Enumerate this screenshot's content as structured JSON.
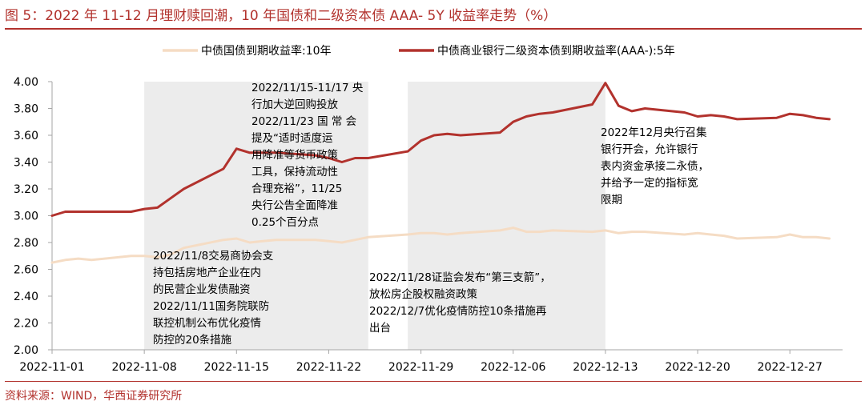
{
  "figure": {
    "title": "图 5：2022 年 11-12 月理财赎回潮，10 年国债和二级资本债 AAA- 5Y 收益率走势（%）",
    "source": "资料来源：WIND，华西证券研究所"
  },
  "chart_data": {
    "type": "line",
    "ylim": [
      2.0,
      4.0
    ],
    "yticks": [
      "2.00",
      "2.20",
      "2.40",
      "2.60",
      "2.80",
      "3.00",
      "3.20",
      "3.40",
      "3.60",
      "3.80",
      "4.00"
    ],
    "xticks": [
      "2022-11-01",
      "2022-11-08",
      "2022-11-15",
      "2022-11-22",
      "2022-11-29",
      "2022-12-06",
      "2022-12-13",
      "2022-12-20",
      "2022-12-27"
    ],
    "xlim": [
      "2022-11-01",
      "2022-12-31"
    ],
    "grid": false,
    "legend_position": "top",
    "shaded_ranges": [
      [
        "2022-11-08",
        "2022-11-25"
      ],
      [
        "2022-11-28",
        "2022-12-13"
      ]
    ],
    "series": [
      {
        "name": "中债国债到期收益率:10年",
        "color": "#f5dcc4",
        "x": [
          "2022-11-01",
          "2022-11-02",
          "2022-11-03",
          "2022-11-04",
          "2022-11-07",
          "2022-11-08",
          "2022-11-09",
          "2022-11-10",
          "2022-11-11",
          "2022-11-14",
          "2022-11-15",
          "2022-11-16",
          "2022-11-17",
          "2022-11-18",
          "2022-11-21",
          "2022-11-22",
          "2022-11-23",
          "2022-11-24",
          "2022-11-25",
          "2022-11-28",
          "2022-11-29",
          "2022-11-30",
          "2022-12-01",
          "2022-12-02",
          "2022-12-05",
          "2022-12-06",
          "2022-12-07",
          "2022-12-08",
          "2022-12-09",
          "2022-12-12",
          "2022-12-13",
          "2022-12-14",
          "2022-12-15",
          "2022-12-16",
          "2022-12-19",
          "2022-12-20",
          "2022-12-21",
          "2022-12-22",
          "2022-12-23",
          "2022-12-26",
          "2022-12-27",
          "2022-12-28",
          "2022-12-29",
          "2022-12-30"
        ],
        "values": [
          2.65,
          2.67,
          2.68,
          2.67,
          2.7,
          2.7,
          2.69,
          2.71,
          2.76,
          2.82,
          2.83,
          2.8,
          2.81,
          2.82,
          2.82,
          2.81,
          2.8,
          2.82,
          2.84,
          2.86,
          2.87,
          2.87,
          2.86,
          2.87,
          2.89,
          2.91,
          2.88,
          2.88,
          2.89,
          2.88,
          2.89,
          2.87,
          2.88,
          2.88,
          2.86,
          2.87,
          2.86,
          2.85,
          2.83,
          2.84,
          2.86,
          2.84,
          2.84,
          2.83
        ]
      },
      {
        "name": "中债商业银行二级资本债到期收益率(AAA-):5年",
        "color": "#b2322d",
        "x": [
          "2022-11-01",
          "2022-11-02",
          "2022-11-03",
          "2022-11-04",
          "2022-11-07",
          "2022-11-08",
          "2022-11-09",
          "2022-11-10",
          "2022-11-11",
          "2022-11-14",
          "2022-11-15",
          "2022-11-16",
          "2022-11-17",
          "2022-11-18",
          "2022-11-21",
          "2022-11-22",
          "2022-11-23",
          "2022-11-24",
          "2022-11-25",
          "2022-11-28",
          "2022-11-29",
          "2022-11-30",
          "2022-12-01",
          "2022-12-02",
          "2022-12-05",
          "2022-12-06",
          "2022-12-07",
          "2022-12-08",
          "2022-12-09",
          "2022-12-12",
          "2022-12-13",
          "2022-12-14",
          "2022-12-15",
          "2022-12-16",
          "2022-12-19",
          "2022-12-20",
          "2022-12-21",
          "2022-12-22",
          "2022-12-23",
          "2022-12-26",
          "2022-12-27",
          "2022-12-28",
          "2022-12-29",
          "2022-12-30"
        ],
        "values": [
          3.0,
          3.03,
          3.03,
          3.03,
          3.03,
          3.05,
          3.06,
          3.13,
          3.2,
          3.35,
          3.5,
          3.47,
          3.47,
          3.47,
          3.45,
          3.43,
          3.4,
          3.43,
          3.43,
          3.48,
          3.56,
          3.6,
          3.61,
          3.6,
          3.62,
          3.7,
          3.74,
          3.76,
          3.77,
          3.83,
          3.99,
          3.82,
          3.78,
          3.8,
          3.77,
          3.74,
          3.75,
          3.74,
          3.72,
          3.73,
          3.76,
          3.75,
          3.73,
          3.72
        ]
      }
    ],
    "annotations": [
      "2022/11/15-11/17 央\n行加大逆回购投放\n2022/11/23 国 常 会\n提及“适时适度运\n用降准等货币政策\n工具，保持流动性\n合理充裕”，11/25\n央行公告全面降准\n0.25个百分点",
      "2022年12月央行召集\n银行开会，允许银行\n表内资金承接二永债，\n并给予一定的指标宽\n限期",
      "2022/11/8交易商协会支\n持包括房地产企业在内\n的民营企业发债融资\n2022/11/11国务院联防\n联控机制公布优化疫情\n防控的20条措施",
      "2022/11/28证监会发布“第三支箭”，\n放松房企股权融资政策\n2022/12/7优化疫情防控10条措施再\n出台"
    ]
  }
}
